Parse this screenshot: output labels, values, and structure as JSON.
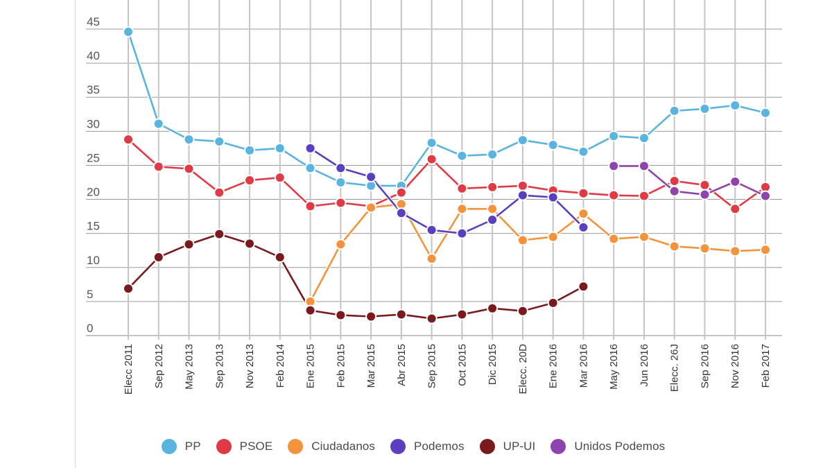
{
  "chart_data": {
    "type": "line",
    "title": "",
    "xlabel": "",
    "ylabel": "",
    "ylim": [
      0,
      45
    ],
    "yticks": [
      0,
      5,
      10,
      15,
      20,
      25,
      30,
      35,
      40,
      45
    ],
    "grid": true,
    "legend_position": "bottom",
    "categories": [
      "Elecc 2011",
      "Sep 2012",
      "May 2013",
      "Sep 2013",
      "Nov 2013",
      "Feb 2014",
      "Ene 2015",
      "Feb 2015",
      "Mar 2015",
      "Abr 2015",
      "Sep 2015",
      "Oct 2015",
      "Dic 2015",
      "Elecc. 20D",
      "Ene 2016",
      "Mar 2016",
      "May 2016",
      "Jun 2016",
      "Elecc. 26J",
      "Sep 2016",
      "Nov 2016",
      "Feb 2017"
    ],
    "series": [
      {
        "name": "PP",
        "color": "#5ab4e0",
        "values": [
          44.6,
          31.1,
          28.8,
          28.5,
          27.2,
          27.5,
          24.6,
          22.5,
          22.0,
          22.0,
          28.3,
          26.4,
          26.6,
          28.7,
          28.0,
          27.0,
          29.3,
          29.0,
          33.0,
          33.3,
          33.8,
          32.7
        ]
      },
      {
        "name": "PSOE",
        "color": "#e03a45",
        "values": [
          28.8,
          24.8,
          24.5,
          21.0,
          22.8,
          23.2,
          19.0,
          19.5,
          19.0,
          21.0,
          25.9,
          21.6,
          21.8,
          22.0,
          21.3,
          20.9,
          20.6,
          20.5,
          22.7,
          22.1,
          18.6,
          21.8
        ]
      },
      {
        "name": "Ciudadanos",
        "color": "#f5933c",
        "values": [
          null,
          null,
          null,
          null,
          null,
          null,
          5.0,
          13.4,
          18.8,
          19.3,
          11.3,
          18.6,
          18.6,
          14.0,
          14.5,
          17.9,
          14.2,
          14.5,
          13.1,
          12.8,
          12.4,
          12.6
        ]
      },
      {
        "name": "Podemos",
        "color": "#5a3fc0",
        "values": [
          null,
          null,
          null,
          null,
          null,
          null,
          27.5,
          24.6,
          23.3,
          18.0,
          15.5,
          15.0,
          17.0,
          20.6,
          20.3,
          15.9,
          null,
          null,
          null,
          null,
          null,
          null
        ]
      },
      {
        "name": "UP-UI",
        "color": "#7a1a1e",
        "values": [
          6.9,
          11.5,
          13.4,
          14.9,
          13.5,
          11.5,
          3.7,
          3.0,
          2.8,
          3.1,
          2.5,
          3.1,
          4.0,
          3.6,
          4.8,
          7.2,
          null,
          null,
          null,
          null,
          null,
          null
        ]
      },
      {
        "name": "Unidos Podemos",
        "color": "#8e44ad",
        "values": [
          null,
          null,
          null,
          null,
          null,
          null,
          null,
          null,
          null,
          null,
          null,
          null,
          null,
          null,
          null,
          null,
          24.9,
          24.9,
          21.2,
          20.7,
          22.6,
          20.5
        ]
      }
    ]
  },
  "legend": {
    "items": [
      {
        "label": "PP",
        "color": "#5ab4e0",
        "icon": "circle-swatch"
      },
      {
        "label": "PSOE",
        "color": "#e03a45",
        "icon": "circle-swatch"
      },
      {
        "label": "Ciudadanos",
        "color": "#f5933c",
        "icon": "circle-swatch"
      },
      {
        "label": "Podemos",
        "color": "#5a3fc0",
        "icon": "circle-swatch"
      },
      {
        "label": "UP-UI",
        "color": "#7a1a1e",
        "icon": "circle-swatch"
      },
      {
        "label": "Unidos Podemos",
        "color": "#8e44ad",
        "icon": "circle-swatch"
      }
    ]
  }
}
